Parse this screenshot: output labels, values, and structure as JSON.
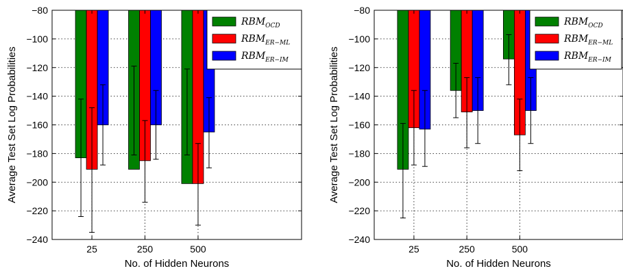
{
  "chart_data": [
    {
      "type": "bar",
      "title": "",
      "xlabel": "No. of Hidden Neurons",
      "ylabel": "Average Test Set Log Probabilities",
      "categories": [
        "25",
        "250",
        "500"
      ],
      "ylim": [
        -240,
        -80
      ],
      "yticks": [
        -80,
        -100,
        -120,
        -140,
        -160,
        -180,
        -200,
        -220,
        -240
      ],
      "grid": true,
      "legend_position": "top-right",
      "colors": [
        "#008000",
        "#ff0000",
        "#0000ff"
      ],
      "series": [
        {
          "name": "RBM",
          "sub": "OCD",
          "values": [
            -183,
            -191,
            -201
          ],
          "err_low": [
            -224,
            -181,
            -181
          ],
          "err_high": [
            -142,
            -119,
            -121
          ]
        },
        {
          "name": "RBM",
          "sub": "ER−ML",
          "values": [
            -191,
            -185,
            -201
          ],
          "err_low": [
            -235,
            -214,
            -230
          ],
          "err_high": [
            -148,
            -157,
            -173
          ]
        },
        {
          "name": "RBM",
          "sub": "ER−IM",
          "values": [
            -160,
            -160,
            -165
          ],
          "err_low": [
            -188,
            -184,
            -190
          ],
          "err_high": [
            -132,
            -136,
            -141
          ]
        }
      ]
    },
    {
      "type": "bar",
      "title": "",
      "xlabel": "No. of Hidden Neurons",
      "ylabel": "Average Test Set Log Probabilities",
      "categories": [
        "25",
        "250",
        "500"
      ],
      "ylim": [
        -240,
        -80
      ],
      "yticks": [
        -80,
        -100,
        -120,
        -140,
        -160,
        -180,
        -200,
        -220,
        -240
      ],
      "grid": true,
      "legend_position": "top-right",
      "colors": [
        "#008000",
        "#ff0000",
        "#0000ff"
      ],
      "series": [
        {
          "name": "RBM",
          "sub": "OCD",
          "values": [
            -191,
            -136,
            -114
          ],
          "err_low": [
            -225,
            -155,
            -132
          ],
          "err_high": [
            -159,
            -117,
            -97
          ]
        },
        {
          "name": "RBM",
          "sub": "ER−ML",
          "values": [
            -162,
            -151,
            -167
          ],
          "err_low": [
            -188,
            -176,
            -192
          ],
          "err_high": [
            -136,
            -127,
            -142
          ]
        },
        {
          "name": "RBM",
          "sub": "ER−IM",
          "values": [
            -163,
            -150,
            -150
          ],
          "err_low": [
            -189,
            -173,
            -173
          ],
          "err_high": [
            -136,
            -127,
            -127
          ]
        }
      ]
    }
  ]
}
